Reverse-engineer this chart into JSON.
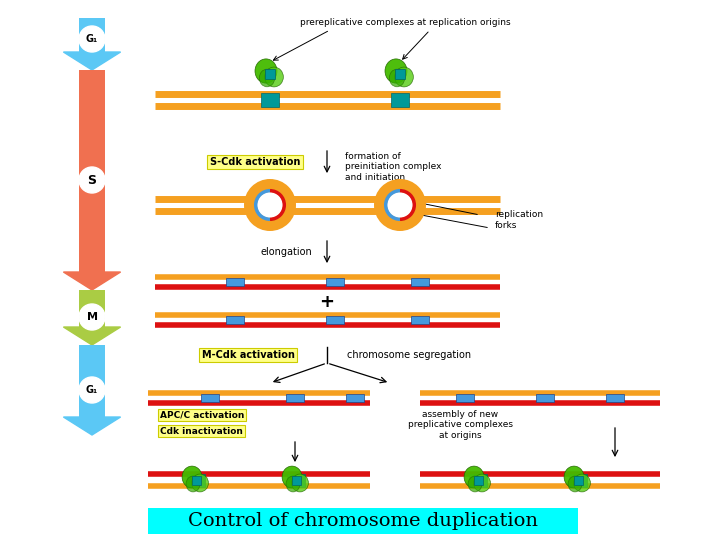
{
  "title": "Control of chromosome duplication",
  "title_bg": "#00FFFF",
  "title_color": "#000000",
  "title_fontsize": 14,
  "bg_color": "#ffffff",
  "arrow_colors": {
    "G1_top": "#5BC8F5",
    "S": "#F07050",
    "M": "#AACC44",
    "G1_bottom": "#5BC8F5"
  },
  "chromosome_orange": "#F5A020",
  "chromosome_red": "#DD1111",
  "chromosome_blue": "#4499DD",
  "complex_green": "#44BB00",
  "annotations": {
    "prereplicative": "prereplicative complexes at replication origins",
    "s_cdk": "S-Cdk activation",
    "formation": "formation of\npreinitiation complex\nand initiation",
    "elongation": "elongation",
    "replication_forks": "replication\nforks",
    "plus": "+",
    "m_cdk": "M-Cdk activation",
    "chrom_seg": "chromosome segregation",
    "apc_c": "APC/C activation",
    "cdk_inact": "Cdk inactivation",
    "assembly": "assembly of new\npreplicative complexes\nat origins"
  }
}
